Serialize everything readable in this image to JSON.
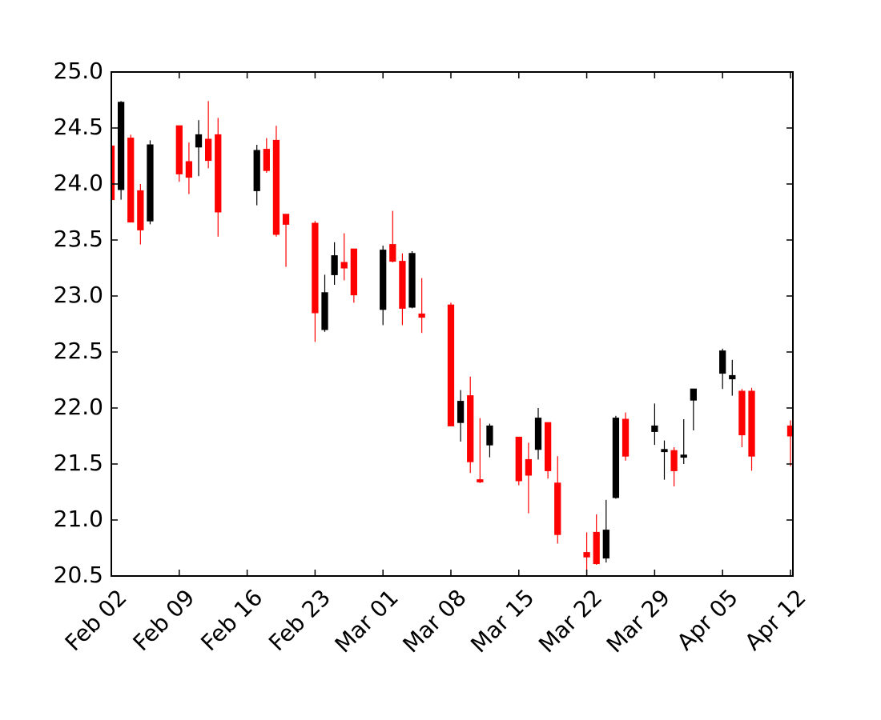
{
  "chart_data": {
    "type": "candlestick",
    "x": [
      0,
      1,
      2,
      3,
      4,
      7,
      8,
      9,
      10,
      11,
      15,
      16,
      17,
      18,
      21,
      22,
      23,
      24,
      25,
      28,
      29,
      30,
      31,
      32,
      35,
      36,
      37,
      38,
      39,
      42,
      43,
      44,
      45,
      46,
      49,
      50,
      51,
      52,
      53,
      56,
      57,
      58,
      59,
      60,
      63,
      64,
      65,
      66,
      70
    ],
    "open": [
      24.34,
      23.95,
      24.41,
      23.94,
      23.67,
      24.52,
      24.2,
      24.33,
      24.4,
      24.44,
      23.94,
      24.31,
      24.39,
      23.73,
      23.65,
      22.7,
      23.19,
      23.3,
      23.42,
      22.88,
      23.46,
      23.31,
      22.9,
      22.84,
      22.92,
      21.87,
      22.11,
      21.36,
      21.67,
      21.74,
      21.54,
      21.63,
      21.87,
      21.33,
      20.71,
      20.89,
      20.66,
      21.2,
      21.9,
      21.79,
      21.61,
      21.62,
      21.56,
      22.07,
      22.31,
      22.26,
      22.15,
      22.15,
      21.84
    ],
    "high": [
      24.37,
      24.74,
      24.44,
      24.0,
      24.39,
      24.52,
      24.37,
      24.57,
      24.74,
      24.59,
      24.35,
      24.41,
      24.52,
      23.73,
      23.67,
      23.19,
      23.48,
      23.56,
      23.42,
      23.45,
      23.76,
      23.38,
      23.4,
      23.16,
      22.94,
      22.16,
      22.28,
      21.91,
      21.86,
      21.74,
      21.69,
      22.0,
      21.87,
      21.57,
      20.89,
      21.05,
      21.18,
      21.93,
      21.96,
      22.04,
      21.71,
      21.65,
      21.9,
      22.17,
      22.53,
      22.43,
      22.17,
      22.18,
      21.89
    ],
    "low": [
      23.79,
      23.86,
      23.66,
      23.46,
      23.64,
      24.02,
      23.91,
      24.07,
      24.14,
      23.53,
      23.81,
      24.1,
      23.53,
      23.26,
      22.59,
      22.68,
      23.1,
      23.14,
      22.94,
      22.74,
      23.3,
      22.74,
      22.89,
      22.67,
      21.84,
      21.7,
      21.42,
      21.33,
      21.56,
      21.31,
      21.06,
      21.54,
      21.37,
      20.79,
      20.51,
      20.6,
      20.62,
      21.19,
      21.53,
      21.67,
      21.36,
      21.3,
      21.5,
      21.8,
      22.17,
      22.11,
      21.65,
      21.44,
      21.48
    ],
    "close": [
      23.86,
      24.73,
      23.66,
      23.59,
      24.35,
      24.09,
      24.06,
      24.44,
      24.21,
      23.75,
      24.3,
      24.12,
      23.55,
      23.64,
      22.85,
      23.03,
      23.36,
      23.25,
      23.01,
      23.41,
      23.31,
      22.89,
      23.38,
      22.81,
      21.84,
      22.06,
      21.52,
      21.34,
      21.84,
      21.35,
      21.4,
      21.91,
      21.44,
      20.87,
      20.67,
      20.61,
      20.91,
      21.91,
      21.57,
      21.84,
      21.63,
      21.44,
      21.58,
      22.17,
      22.51,
      22.29,
      21.76,
      21.57,
      21.75
    ],
    "up_color": "black",
    "down_color": "red",
    "xlim": [
      0,
      70.25
    ],
    "xticks": [
      {
        "value": 0,
        "label": "Feb 02"
      },
      {
        "value": 7,
        "label": "Feb 09"
      },
      {
        "value": 14,
        "label": "Feb 16"
      },
      {
        "value": 21,
        "label": "Feb 23"
      },
      {
        "value": 28,
        "label": "Mar 01"
      },
      {
        "value": 35,
        "label": "Mar 08"
      },
      {
        "value": 42,
        "label": "Mar 15"
      },
      {
        "value": 49,
        "label": "Mar 22"
      },
      {
        "value": 56,
        "label": "Mar 29"
      },
      {
        "value": 63,
        "label": "Apr 05"
      },
      {
        "value": 70,
        "label": "Apr 12"
      }
    ],
    "ylim": [
      20.5,
      25.0
    ],
    "yticks": [
      {
        "value": 20.5,
        "label": "20.5"
      },
      {
        "value": 21.0,
        "label": "21.0"
      },
      {
        "value": 21.5,
        "label": "21.5"
      },
      {
        "value": 22.0,
        "label": "22.0"
      },
      {
        "value": 22.5,
        "label": "22.5"
      },
      {
        "value": 23.0,
        "label": "23.0"
      },
      {
        "value": 23.5,
        "label": "23.5"
      },
      {
        "value": 24.0,
        "label": "24.0"
      },
      {
        "value": 24.5,
        "label": "24.5"
      },
      {
        "value": 25.0,
        "label": "25.0"
      }
    ]
  }
}
